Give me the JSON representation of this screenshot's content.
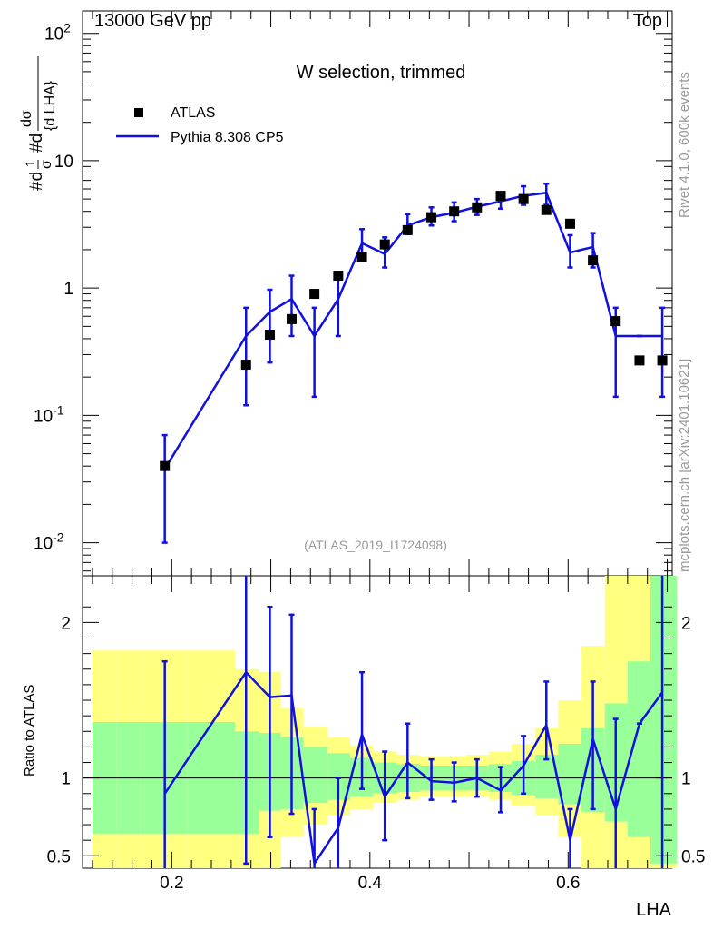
{
  "header": {
    "left": "13000 GeV pp",
    "right": "Top"
  },
  "side_labels": {
    "rivet": "Rivet 4.1.0,  600k events",
    "mcplots": "mcplots.cern.ch [arXiv:2401.10621]"
  },
  "chart_data": {
    "type": "line",
    "title": "W selection, trimmed",
    "analysis": "(ATLAS_2019_I1724098)",
    "xlabel": "LHA",
    "ylabel_main": "1/σ dσ/d LHA",
    "ylabel_ratio": "Ratio to ATLAS",
    "x_range": [
      0.11,
      0.705
    ],
    "ylim_main": [
      0.0055,
      150
    ],
    "ylim_ratio": [
      0.42,
      2.3
    ],
    "yscale_main": "log",
    "x_ticks": [
      "0.2",
      "0.4",
      "0.6"
    ],
    "y_ticks_main": [
      "10^-2",
      "10^-1",
      "1",
      "10",
      "10^2"
    ],
    "y_ticks_ratio": [
      "0.5",
      "1",
      "2"
    ],
    "legend": {
      "data": "ATLAS",
      "mc": "Pythia 8.308 CP5"
    },
    "bins": [
      0.12,
      0.144,
      0.168,
      0.192,
      0.216,
      0.24,
      0.264,
      0.288,
      0.31,
      0.333,
      0.357,
      0.38,
      0.403,
      0.427,
      0.45,
      0.473,
      0.497,
      0.52,
      0.543,
      0.567,
      0.59,
      0.613,
      0.637,
      0.66,
      0.683,
      0.71
    ],
    "atlas": {
      "name": "ATLAS",
      "x": [
        0.193,
        0.275,
        0.299,
        0.321,
        0.344,
        0.368,
        0.392,
        0.415,
        0.438,
        0.462,
        0.485,
        0.508,
        0.532,
        0.555,
        0.578,
        0.602,
        0.625,
        0.648,
        0.672,
        0.695
      ],
      "values": [
        0.04,
        0.25,
        0.43,
        0.57,
        0.9,
        1.25,
        1.75,
        2.2,
        2.85,
        3.6,
        4.0,
        4.3,
        5.3,
        5.0,
        4.1,
        3.2,
        1.65,
        0.55,
        0.27,
        0.27
      ]
    },
    "pythia": {
      "name": "Pythia 8.308 CP5",
      "x": [
        0.193,
        0.275,
        0.299,
        0.321,
        0.344,
        0.368,
        0.392,
        0.415,
        0.438,
        0.462,
        0.485,
        0.508,
        0.532,
        0.555,
        0.578,
        0.602,
        0.625,
        0.648,
        0.672,
        0.695
      ],
      "values": [
        0.038,
        0.42,
        0.65,
        0.82,
        0.42,
        0.82,
        2.25,
        1.85,
        3.1,
        3.6,
        3.9,
        4.35,
        4.8,
        5.3,
        5.6,
        1.9,
        2.1,
        0.42,
        0.42,
        0.42
      ],
      "err_lo": [
        0.01,
        0.12,
        0.26,
        0.42,
        0.14,
        0.42,
        1.7,
        1.45,
        2.65,
        3.1,
        3.35,
        3.75,
        4.2,
        4.5,
        4.5,
        1.45,
        1.45,
        0.14,
        0.42,
        0.14
      ],
      "err_hi": [
        0.07,
        0.7,
        0.97,
        1.25,
        0.7,
        1.25,
        2.9,
        2.5,
        3.8,
        4.3,
        4.7,
        5.0,
        5.6,
        6.3,
        6.6,
        2.6,
        2.7,
        0.7,
        0.42,
        0.7
      ],
      "ratio": [
        0.9,
        1.68,
        1.52,
        1.53,
        0.45,
        0.68,
        1.28,
        0.88,
        1.1,
        0.98,
        0.97,
        1.0,
        0.92,
        1.08,
        1.34,
        0.6,
        1.25,
        0.8,
        1.35,
        1.55
      ],
      "ratio_lo": [
        0.0,
        0.45,
        0.62,
        0.77,
        0.2,
        0.25,
        0.93,
        0.6,
        0.87,
        0.86,
        0.85,
        0.88,
        0.78,
        0.9,
        1.12,
        0.35,
        0.8,
        0.2,
        1.35,
        0.4
      ],
      "ratio_hi": [
        1.75,
        2.4,
        2.1,
        2.05,
        0.8,
        1.0,
        1.68,
        1.17,
        1.35,
        1.12,
        1.1,
        1.12,
        1.07,
        1.27,
        1.62,
        0.8,
        1.62,
        1.38,
        1.35,
        2.6
      ]
    },
    "band_inner": {
      "lo": [
        0.64,
        0.64,
        0.64,
        0.64,
        0.64,
        0.64,
        0.64,
        0.79,
        0.8,
        0.84,
        0.86,
        0.88,
        0.9,
        0.91,
        0.92,
        0.92,
        0.92,
        0.91,
        0.89,
        0.87,
        0.83,
        0.78,
        0.72,
        0.62,
        0.45
      ],
      "hi": [
        1.36,
        1.36,
        1.36,
        1.36,
        1.36,
        1.36,
        1.3,
        1.29,
        1.26,
        1.2,
        1.16,
        1.13,
        1.1,
        1.09,
        1.08,
        1.08,
        1.08,
        1.09,
        1.11,
        1.15,
        1.22,
        1.32,
        1.48,
        1.75,
        2.3
      ]
    },
    "band_outer": {
      "lo": [
        0.42,
        0.42,
        0.42,
        0.42,
        0.42,
        0.42,
        0.42,
        0.42,
        0.62,
        0.7,
        0.76,
        0.8,
        0.84,
        0.86,
        0.88,
        0.88,
        0.88,
        0.86,
        0.82,
        0.76,
        0.62,
        0.42,
        0.42,
        0.42,
        0.42
      ],
      "hi": [
        1.82,
        1.82,
        1.82,
        1.82,
        1.82,
        1.82,
        1.7,
        1.68,
        1.45,
        1.33,
        1.26,
        1.21,
        1.17,
        1.15,
        1.14,
        1.14,
        1.15,
        1.17,
        1.22,
        1.32,
        1.5,
        1.85,
        2.3,
        2.3,
        2.3
      ]
    }
  }
}
